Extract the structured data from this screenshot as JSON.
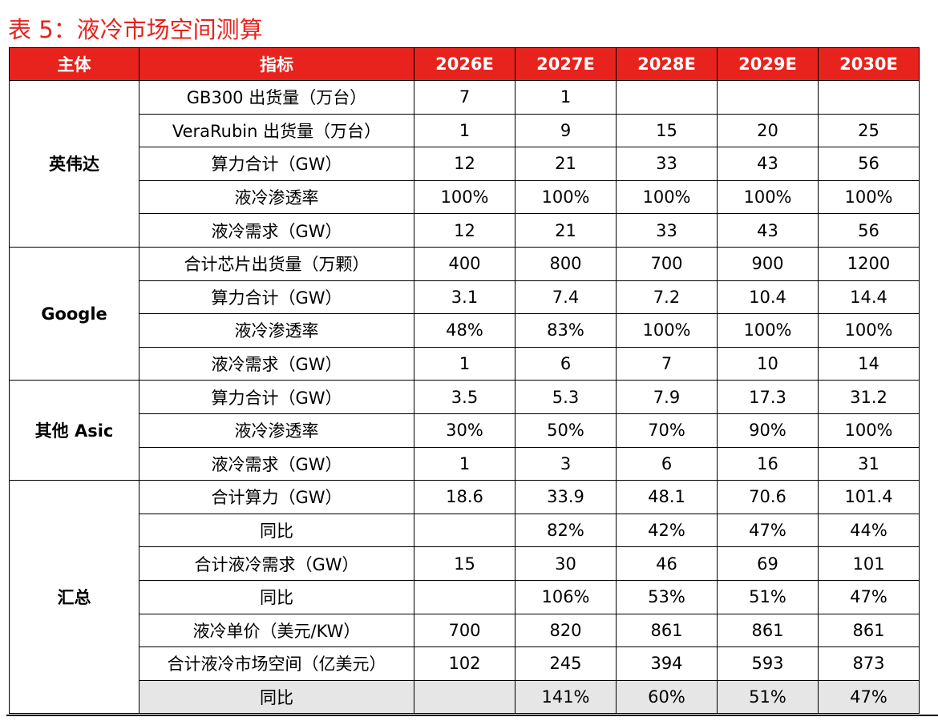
{
  "title": "表 5：液冷市场空间测算",
  "headers": [
    "主体",
    "指标",
    "2026E",
    "2027E",
    "2028E",
    "2029E",
    "2030E"
  ],
  "groups": [
    {
      "name": "英伟达",
      "rows": [
        {
          "label": "GB300 出货量（万台）",
          "values": [
            "7",
            "1",
            "",
            "",
            ""
          ]
        },
        {
          "label": "VeraRubin 出货量（万台）",
          "values": [
            "1",
            "9",
            "15",
            "20",
            "25"
          ]
        },
        {
          "label": "算力合计（GW）",
          "values": [
            "12",
            "21",
            "33",
            "43",
            "56"
          ]
        },
        {
          "label": "液冷渗透率",
          "values": [
            "100%",
            "100%",
            "100%",
            "100%",
            "100%"
          ]
        },
        {
          "label": "液冷需求（GW）",
          "values": [
            "12",
            "21",
            "33",
            "43",
            "56"
          ]
        }
      ]
    },
    {
      "name": "Google",
      "rows": [
        {
          "label": "合计芯片出货量（万颗）",
          "values": [
            "400",
            "800",
            "700",
            "900",
            "1200"
          ]
        },
        {
          "label": "算力合计（GW）",
          "values": [
            "3.1",
            "7.4",
            "7.2",
            "10.4",
            "14.4"
          ]
        },
        {
          "label": "液冷渗透率",
          "values": [
            "48%",
            "83%",
            "100%",
            "100%",
            "100%"
          ]
        },
        {
          "label": "液冷需求（GW）",
          "values": [
            "1",
            "6",
            "7",
            "10",
            "14"
          ]
        }
      ]
    },
    {
      "name": "其他 Asic",
      "rows": [
        {
          "label": "算力合计（GW）",
          "values": [
            "3.5",
            "5.3",
            "7.9",
            "17.3",
            "31.2"
          ]
        },
        {
          "label": "液冷渗透率",
          "values": [
            "30%",
            "50%",
            "70%",
            "90%",
            "100%"
          ]
        },
        {
          "label": "液冷需求（GW）",
          "values": [
            "1",
            "3",
            "6",
            "16",
            "31"
          ]
        }
      ]
    },
    {
      "name": "汇总",
      "rows": [
        {
          "label": "合计算力（GW）",
          "values": [
            "18.6",
            "33.9",
            "48.1",
            "70.6",
            "101.4"
          ]
        },
        {
          "label": "同比",
          "values": [
            "",
            "82%",
            "42%",
            "47%",
            "44%"
          ]
        },
        {
          "label": "合计液冷需求（GW）",
          "values": [
            "15",
            "30",
            "46",
            "69",
            "101"
          ]
        },
        {
          "label": "同比",
          "values": [
            "",
            "106%",
            "53%",
            "51%",
            "47%"
          ]
        },
        {
          "label": "液冷单价（美元/KW）",
          "values": [
            "700",
            "820",
            "861",
            "861",
            "861"
          ]
        },
        {
          "label": "合计液冷市场空间（亿美元）",
          "values": [
            "102",
            "245",
            "394",
            "593",
            "873"
          ]
        },
        {
          "label": "同比",
          "values": [
            "",
            "141%",
            "60%",
            "51%",
            "47%"
          ],
          "shaded": true
        }
      ]
    }
  ],
  "colors": {
    "accent": "#e8231d",
    "shade": "#e6e6e6"
  }
}
